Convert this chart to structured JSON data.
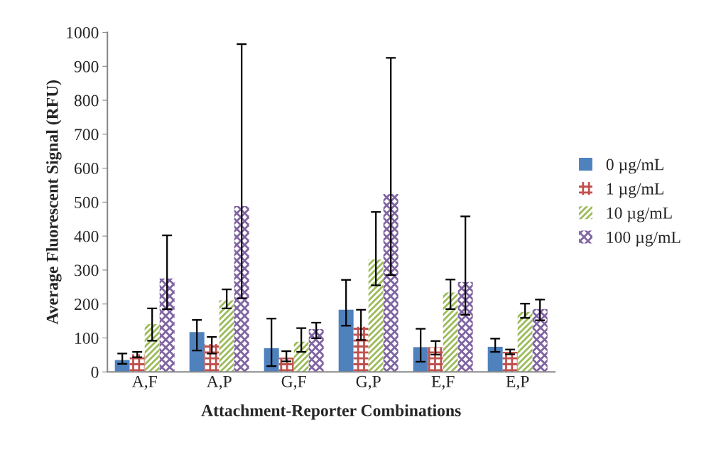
{
  "chart_data": {
    "type": "bar",
    "xlabel": "Attachment-Reporter Combinations",
    "ylabel": "Average Fluorescent Signal (RFU)",
    "categories": [
      "A,F",
      "A,P",
      "G,F",
      "G,P",
      "E,F",
      "E,P"
    ],
    "series": [
      {
        "name": "0 µg/mL",
        "color": "#4f81bd",
        "values": [
          35,
          117,
          70,
          183,
          73,
          74
        ],
        "errors": [
          [
            24,
            54
          ],
          [
            63,
            153
          ],
          [
            17,
            157
          ],
          [
            136,
            271
          ],
          [
            30,
            127
          ],
          [
            59,
            98
          ]
        ]
      },
      {
        "name": "1 µg/mL",
        "color": "#c0504d",
        "values": [
          52,
          82,
          42,
          133,
          73,
          59
        ],
        "errors": [
          [
            43,
            59
          ],
          [
            54,
            103
          ],
          [
            31,
            61
          ],
          [
            94,
            183
          ],
          [
            51,
            91
          ],
          [
            52,
            66
          ]
        ]
      },
      {
        "name": "10 µg/mL",
        "color": "#9bbb59",
        "values": [
          141,
          211,
          89,
          331,
          234,
          177
        ],
        "errors": [
          [
            92,
            187
          ],
          [
            187,
            243
          ],
          [
            59,
            129
          ],
          [
            255,
            471
          ],
          [
            185,
            272
          ],
          [
            159,
            201
          ]
        ]
      },
      {
        "name": "100 µg/mL",
        "color": "#8064a2",
        "values": [
          275,
          488,
          126,
          524,
          265,
          185
        ],
        "errors": [
          [
            185,
            402
          ],
          [
            217,
            965
          ],
          [
            99,
            145
          ],
          [
            285,
            925
          ],
          [
            168,
            458
          ],
          [
            152,
            213
          ]
        ]
      }
    ],
    "ylim": [
      0,
      1000
    ],
    "yticks": [
      0,
      100,
      200,
      300,
      400,
      500,
      600,
      700,
      800,
      900,
      1000
    ],
    "grid": false,
    "legend": "right"
  }
}
